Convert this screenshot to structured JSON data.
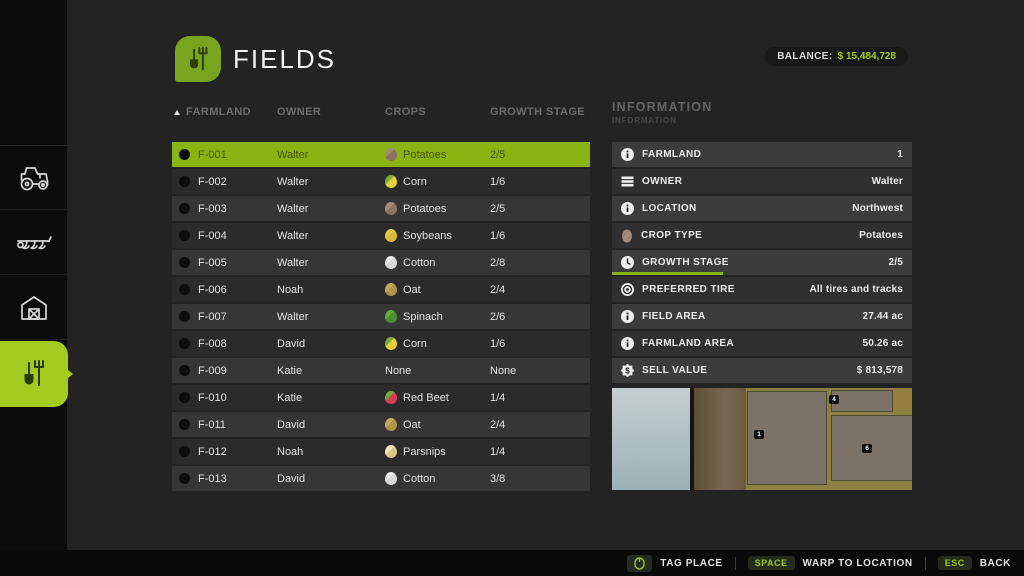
{
  "header": {
    "title": "FIELDS",
    "balance_label": "BALANCE:",
    "balance_value": "$ 15,484,728"
  },
  "sidebar": {
    "items": [
      {
        "id": "vehicles",
        "icon": "tractor-icon",
        "active": false
      },
      {
        "id": "implements",
        "icon": "plow-icon",
        "active": false
      },
      {
        "id": "buildings",
        "icon": "barn-icon",
        "active": false
      },
      {
        "id": "fields",
        "icon": "field-tools-icon",
        "active": true
      }
    ]
  },
  "table": {
    "sort_column": "FARMLAND",
    "headers": [
      "FARMLAND",
      "OWNER",
      "CROPS",
      "GROWTH STAGE"
    ],
    "rows": [
      {
        "id": "F-001",
        "owner": "Walter",
        "crop": "Potatoes",
        "stage": "2/5",
        "selected": true,
        "crop_colors": [
          "#a78a78",
          "#8d7262"
        ]
      },
      {
        "id": "F-002",
        "owner": "Walter",
        "crop": "Corn",
        "stage": "1/6",
        "selected": false,
        "crop_colors": [
          "#7fae3a",
          "#e9cf3c"
        ]
      },
      {
        "id": "F-003",
        "owner": "Walter",
        "crop": "Potatoes",
        "stage": "2/5",
        "selected": false,
        "crop_colors": [
          "#a78a78",
          "#8d7262"
        ]
      },
      {
        "id": "F-004",
        "owner": "Walter",
        "crop": "Soybeans",
        "stage": "1/6",
        "selected": false,
        "crop_colors": [
          "#e3c84a",
          "#d9b93a"
        ]
      },
      {
        "id": "F-005",
        "owner": "Walter",
        "crop": "Cotton",
        "stage": "2/8",
        "selected": false,
        "crop_colors": [
          "#ececec",
          "#d8d8d8"
        ]
      },
      {
        "id": "F-006",
        "owner": "Noah",
        "crop": "Oat",
        "stage": "2/4",
        "selected": false,
        "crop_colors": [
          "#c9a85a",
          "#b1924a"
        ]
      },
      {
        "id": "F-007",
        "owner": "Walter",
        "crop": "Spinach",
        "stage": "2/6",
        "selected": false,
        "crop_colors": [
          "#69aa3c",
          "#4c8f2e"
        ]
      },
      {
        "id": "F-008",
        "owner": "David",
        "crop": "Corn",
        "stage": "1/6",
        "selected": false,
        "crop_colors": [
          "#7fae3a",
          "#e9cf3c"
        ]
      },
      {
        "id": "F-009",
        "owner": "Katie",
        "crop": "None",
        "stage": "None",
        "selected": false,
        "crop_colors": null
      },
      {
        "id": "F-010",
        "owner": "Katie",
        "crop": "Red Beet",
        "stage": "1/4",
        "selected": false,
        "crop_colors": [
          "#6fae3a",
          "#d64252"
        ]
      },
      {
        "id": "F-011",
        "owner": "David",
        "crop": "Oat",
        "stage": "2/4",
        "selected": false,
        "crop_colors": [
          "#c9a85a",
          "#b1924a"
        ]
      },
      {
        "id": "F-012",
        "owner": "Noah",
        "crop": "Parsnips",
        "stage": "1/4",
        "selected": false,
        "crop_colors": [
          "#efe3b8",
          "#d9c788"
        ]
      },
      {
        "id": "F-013",
        "owner": "David",
        "crop": "Cotton",
        "stage": "3/8",
        "selected": false,
        "crop_colors": [
          "#ececec",
          "#d8d8d8"
        ]
      }
    ]
  },
  "info": {
    "title": "INFORMATION",
    "subtitle": "INFORMATION",
    "rows": [
      {
        "icon": "info-icon",
        "label": "FARMLAND",
        "value": "1"
      },
      {
        "icon": "owner-icon",
        "label": "OWNER",
        "value": "Walter"
      },
      {
        "icon": "info-icon",
        "label": "LOCATION",
        "value": "Northwest"
      },
      {
        "icon": "potato-icon",
        "label": "CROP TYPE",
        "value": "Potatoes"
      },
      {
        "icon": "clock-icon",
        "label": "GROWTH STAGE",
        "value": "2/5",
        "progress": 0.37
      },
      {
        "icon": "tire-icon",
        "label": "PREFERRED TIRE",
        "value": "All tires and tracks"
      },
      {
        "icon": "info-icon",
        "label": "FIELD AREA",
        "value": "27.44 ac"
      },
      {
        "icon": "info-icon",
        "label": "FARMLAND AREA",
        "value": "50.26 ac"
      },
      {
        "icon": "money-icon",
        "label": "SELL VALUE",
        "value": "$ 813,578"
      }
    ]
  },
  "map": {
    "badges": [
      {
        "label": "1"
      },
      {
        "label": "4"
      },
      {
        "label": "6"
      }
    ]
  },
  "footer": {
    "hints": [
      {
        "icon": "mouse-icon",
        "label": "TAG PLACE"
      },
      {
        "key": "SPACE",
        "label": "WARP TO LOCATION"
      },
      {
        "key": "ESC",
        "label": "BACK"
      }
    ]
  },
  "colors": {
    "accent_green": "#8ab412",
    "sidebar_green": "#a4ca20",
    "balance_green": "#a7cc1f"
  }
}
